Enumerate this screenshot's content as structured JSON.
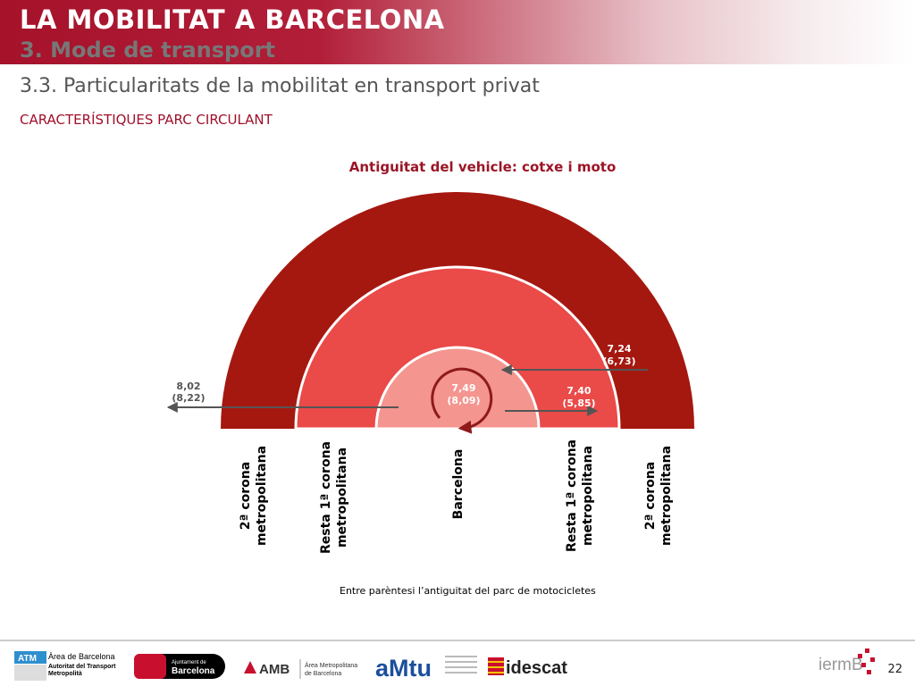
{
  "header": {
    "title": "LA MOBILITAT A BARCELONA",
    "subtitle": "3. Mode de transport"
  },
  "section": {
    "title": "3.3. Particularitats de la mobilitat en transport privat",
    "label": "CARACTERÍSTIQUES PARC CIRCULANT"
  },
  "chart_data": {
    "type": "diagram",
    "title": "Antiguitat del vehicle: cotxe i moto",
    "rings": [
      {
        "name": "Barcelona",
        "value_car": "7,49",
        "value_moto": "(8,09)",
        "color": "#f4958f"
      },
      {
        "name": "Resta 1ª corona metropolitana",
        "value_car": "7,40",
        "value_moto": "(5,85)",
        "color": "#ea4a48"
      },
      {
        "name": "2ª corona metropolitana",
        "value_car": "7,24",
        "value_moto": "(6,73)",
        "color": "#a5180f"
      },
      {
        "name": "2ª corona metropolitana",
        "value_car": "8,02",
        "value_moto": "(8,22)",
        "color": "#a5180f"
      }
    ],
    "labels_rotated": [
      {
        "line1": "2ª corona",
        "line2": "metropolitana"
      },
      {
        "line1": "Resta 1ª corona",
        "line2": "metropolitana"
      },
      {
        "line1": "Barcelona",
        "line2": ""
      },
      {
        "line1": "Resta 1ª corona",
        "line2": "metropolitana"
      },
      {
        "line1": "2ª corona",
        "line2": "metropolitana"
      }
    ]
  },
  "footnote": "Entre parèntesi l’antiguitat del parc de motocicletes",
  "footer": {
    "atm_logo": "ATM",
    "atm_line1": "Àrea de Barcelona",
    "atm_line2": "Autoritat del Transport",
    "atm_line3": "Metropolità",
    "ajuntament_line1": "Ajuntament de",
    "ajuntament_line2": "Barcelona",
    "amb_logo": "AMB",
    "amb_line1": "Àrea Metropolitana",
    "amb_line2": "de Barcelona",
    "amtu_logo": "aMtu",
    "idescat_logo": "idescat",
    "iermb_logo": "iermB",
    "page_number": "22"
  }
}
